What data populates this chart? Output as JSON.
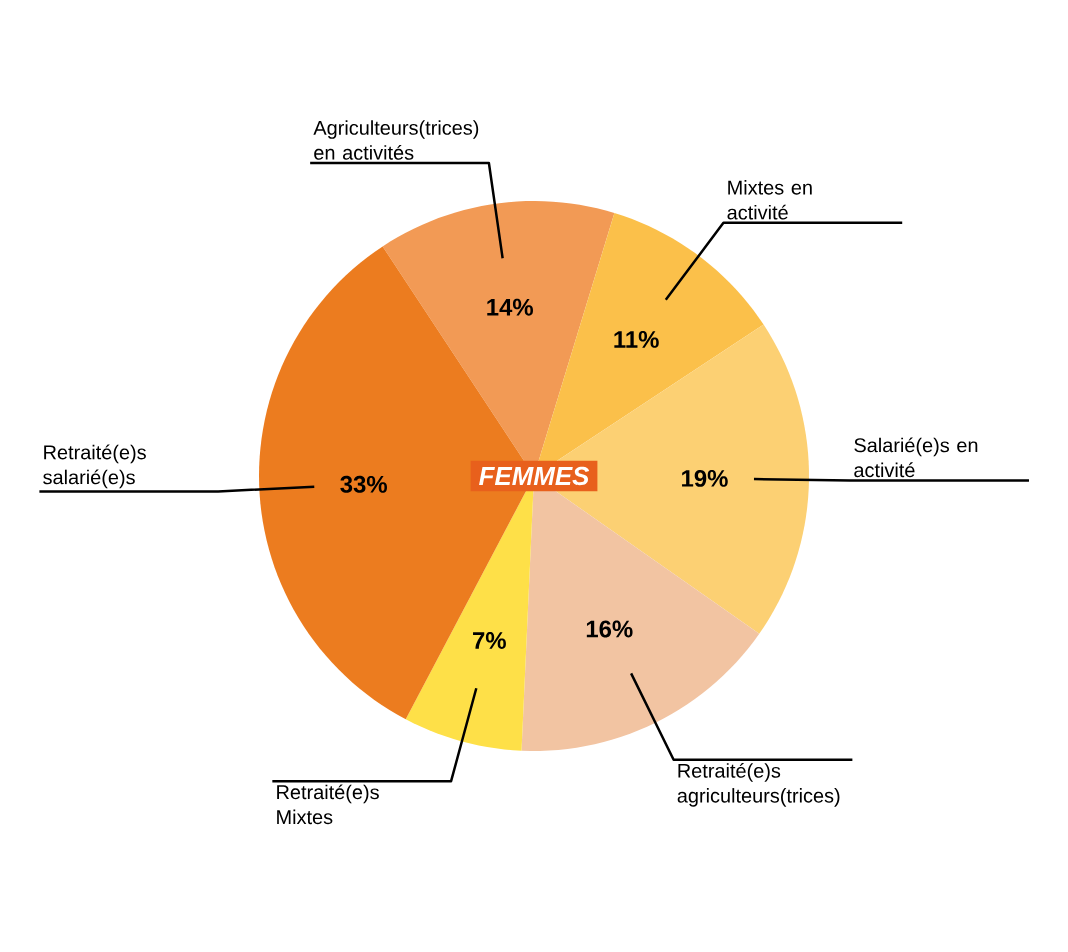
{
  "chart_data": {
    "type": "pie",
    "title": "FEMMES",
    "categories": [
      "Agriculteurs(trices) en activités",
      "Mixtes en activité",
      "Salarié(e)s en activité",
      "Retraité(e)s agriculteurs(trices)",
      "Retraité(e)s Mixtes",
      "Retraité(e)s salarié(e)s"
    ],
    "values": [
      14,
      11,
      19,
      16,
      7,
      33
    ],
    "value_labels": [
      "14%",
      "11%",
      "19%",
      "16%",
      "7%",
      "33%"
    ],
    "colors": [
      "#f29a55",
      "#fbc04a",
      "#fcd073",
      "#f2c4a2",
      "#fee048",
      "#ec7c1f"
    ]
  }
}
